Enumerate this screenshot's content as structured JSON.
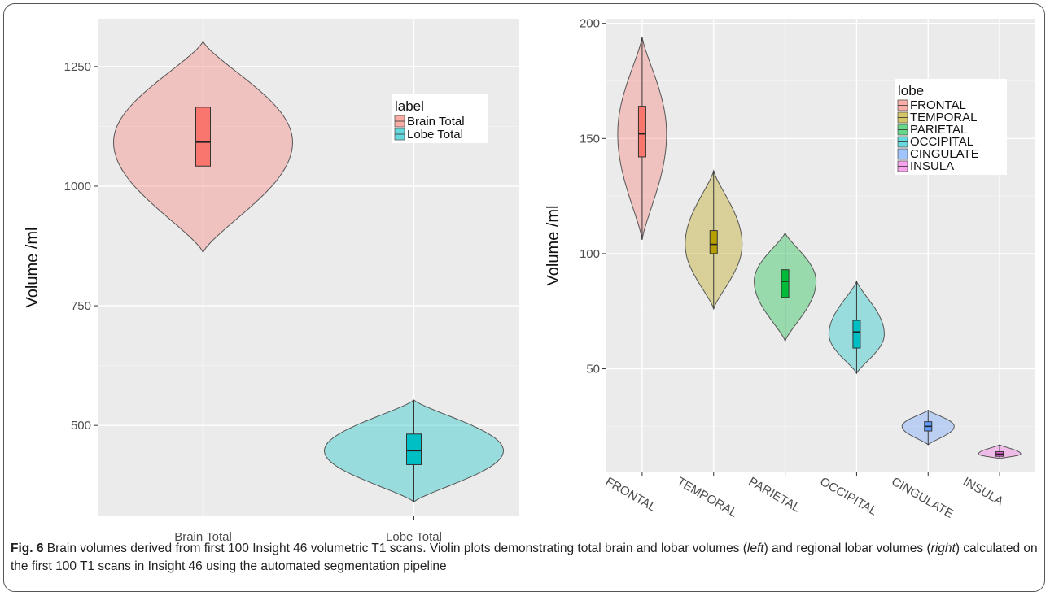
{
  "caption": {
    "fig_label": "Fig. 6",
    "title": "Brain volumes derived from first 100 Insight 46 volumetric T1 scans.",
    "text_a": "Violin plots demonstrating total brain and lobar volumes (",
    "left_word": "left",
    "text_b": ") and regional lobar volumes (",
    "right_word": "right",
    "text_c": ") calculated on the first 100 T1 scans in Insight 46 using the automated segmentation pipeline"
  },
  "chart_data": [
    {
      "type": "violin",
      "title": "",
      "xlabel": "",
      "ylabel": "Volume /ml",
      "ylim": [
        310,
        1350
      ],
      "yticks": [
        500,
        750,
        1000,
        1250
      ],
      "grid": true,
      "legend": {
        "title": "label",
        "position": "top-right"
      },
      "categories": [
        "Brain Total",
        "Lobe Total"
      ],
      "series": [
        {
          "name": "Brain Total",
          "color": "#F8766D",
          "min": 862,
          "q1": 1042,
          "median": 1092,
          "q3": 1165,
          "max": 1302,
          "mode": 1092
        },
        {
          "name": "Lobe Total",
          "color": "#00BFC4",
          "min": 340,
          "q1": 418,
          "median": 447,
          "q3": 482,
          "max": 553,
          "mode": 447
        }
      ]
    },
    {
      "type": "violin",
      "title": "",
      "xlabel": "",
      "ylabel": "Volume /ml",
      "ylim": [
        5,
        202
      ],
      "yticks": [
        50,
        100,
        150,
        200
      ],
      "grid": true,
      "legend": {
        "title": "lobe",
        "position": "top-right"
      },
      "categories": [
        "FRONTAL",
        "TEMPORAL",
        "PARIETAL",
        "OCCIPITAL",
        "CINGULATE",
        "INSULA"
      ],
      "series": [
        {
          "name": "FRONTAL",
          "color": "#F8766D",
          "min": 106,
          "q1": 142,
          "median": 152,
          "q3": 164,
          "max": 194,
          "mode": 152
        },
        {
          "name": "TEMPORAL",
          "color": "#B79F00",
          "min": 76,
          "q1": 100,
          "median": 104,
          "q3": 110,
          "max": 136,
          "mode": 104
        },
        {
          "name": "PARIETAL",
          "color": "#00BA38",
          "min": 62,
          "q1": 81,
          "median": 88,
          "q3": 93,
          "max": 109,
          "mode": 88
        },
        {
          "name": "OCCIPITAL",
          "color": "#00BFC4",
          "min": 48,
          "q1": 59,
          "median": 66,
          "q3": 71,
          "max": 88,
          "mode": 65
        },
        {
          "name": "CINGULATE",
          "color": "#619CFF",
          "min": 17,
          "q1": 23,
          "median": 25,
          "q3": 27,
          "max": 32,
          "mode": 25
        },
        {
          "name": "INSULA",
          "color": "#F564E3",
          "min": 11,
          "q1": 12,
          "median": 13,
          "q3": 14,
          "max": 17,
          "mode": 13
        }
      ]
    }
  ]
}
